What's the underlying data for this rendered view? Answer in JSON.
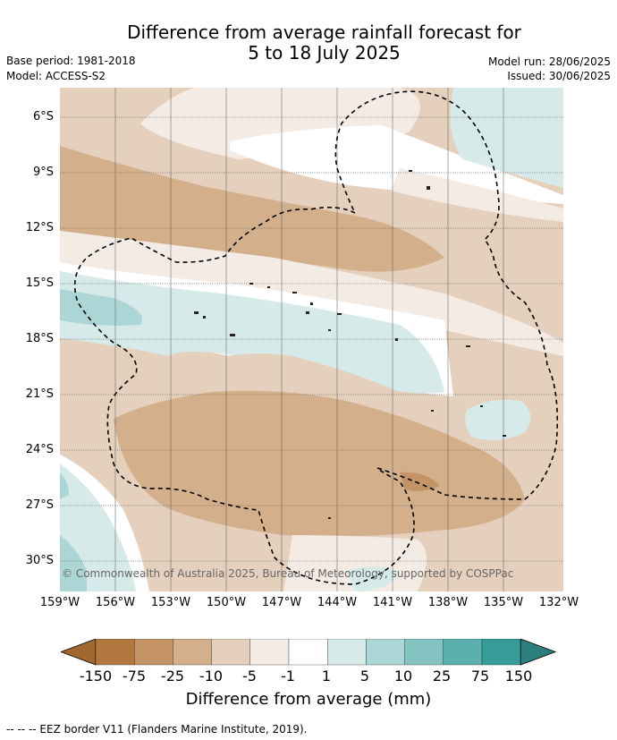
{
  "title_line1": "Difference from average rainfall forecast for",
  "title_line2": "5 to 18 July 2025",
  "meta_left": [
    "Base period: 1981-2018",
    "Model: ACCESS-S2"
  ],
  "meta_right": [
    "Model run: 28/06/2025",
    "Issued: 30/06/2025"
  ],
  "lat_labels": [
    "6°S",
    "9°S",
    "12°S",
    "15°S",
    "18°S",
    "21°S",
    "24°S",
    "27°S",
    "30°S"
  ],
  "lon_labels": [
    "159°W",
    "156°W",
    "153°W",
    "150°W",
    "147°W",
    "144°W",
    "141°W",
    "138°W",
    "135°W",
    "132°W"
  ],
  "copyright": "© Commonwealth of Australia 2025, Bureau of Meteorology, supported by COSPPac",
  "colorbar": {
    "ticks": [
      "-150",
      "-75",
      "-25",
      "-10",
      "-5",
      "-1",
      "1",
      "5",
      "10",
      "25",
      "75",
      "150"
    ],
    "colors": [
      "#a0672f",
      "#b2773f",
      "#c49467",
      "#d3af8c",
      "#e5d0bd",
      "#f4ebe5",
      "#ffffff",
      "#d5eae9",
      "#acd6d5",
      "#83c4c2",
      "#5bb0ae",
      "#359c99",
      "#2b7f7c"
    ],
    "label": "Difference from average (mm)"
  },
  "eez_note": "--  --  -- EEZ border V11 (Flanders Marine Institute, 2019)."
}
